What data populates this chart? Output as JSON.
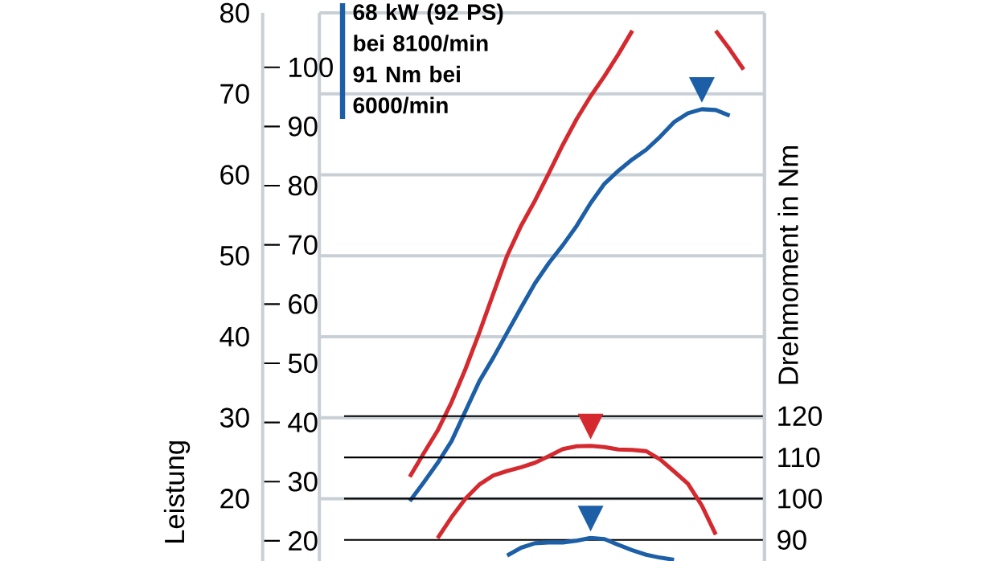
{
  "chart_data": {
    "type": "line",
    "ylabel": "Leistung",
    "y3label": "Drehmoment in Nm",
    "annotations": [
      "68 kW (92 PS) bei 8100/min 91 Nm bei 6000/min"
    ],
    "categories": [
      null,
      null,
      null,
      null,
      null,
      null,
      null,
      null,
      null,
      null,
      null,
      null,
      null,
      null,
      null,
      null,
      null,
      null,
      null,
      null,
      null,
      null,
      null,
      null,
      null
    ],
    "ylim": [
      12.3,
      80
    ],
    "yticks": [
      20,
      30,
      40,
      50,
      60,
      70,
      80
    ],
    "y2lim": [
      16.6,
      109.2
    ],
    "y2ticks": [
      20,
      30,
      40,
      50,
      60,
      70,
      80,
      90,
      100
    ],
    "y3lim": [
      84.9,
      217.7
    ],
    "y3ticks": [
      90,
      100,
      110,
      120
    ],
    "grid": true,
    "series": [
      {
        "color": "#d42a2f",
        "values": [
          22.7,
          25.6,
          28.4,
          31.9,
          36.0,
          40.5,
          45.3,
          50.0,
          53.7,
          56.8,
          60.2,
          63.7,
          66.9,
          69.7,
          72.2,
          74.9,
          77.8,
          null,
          null,
          null,
          null,
          null,
          null,
          null,
          null
        ]
      },
      {
        "color": "#d42a2f",
        "values": [
          null,
          null,
          null,
          null,
          null,
          null,
          null,
          null,
          null,
          null,
          null,
          null,
          null,
          null,
          null,
          null,
          null,
          null,
          null,
          null,
          null,
          null,
          77.8,
          75.5,
          73.0
        ]
      },
      {
        "color": "#1d5fa6",
        "values": [
          19.7,
          22.0,
          24.4,
          27.1,
          30.8,
          34.5,
          37.4,
          40.5,
          43.6,
          46.6,
          49.1,
          51.3,
          53.7,
          56.5,
          58.9,
          60.5,
          61.9,
          63.1,
          64.7,
          66.5,
          67.6,
          68.1,
          68.0,
          67.3,
          null
        ]
      },
      {
        "axis": "y3",
        "color": "#d42a2f",
        "values": [
          null,
          null,
          90.4,
          95.5,
          100.0,
          103.4,
          105.6,
          106.7,
          107.6,
          108.7,
          110.3,
          112.0,
          112.7,
          112.8,
          112.5,
          111.9,
          111.8,
          111.5,
          109.5,
          106.6,
          103.6,
          98.3,
          91.3,
          null,
          null
        ]
      },
      {
        "axis": "y3",
        "color": "#1d5fa6",
        "values": [
          null,
          null,
          null,
          null,
          null,
          null,
          null,
          86.2,
          88.1,
          89.2,
          89.4,
          89.4,
          89.8,
          90.5,
          90.2,
          88.8,
          87.5,
          86.4,
          85.7,
          85.2,
          null,
          null,
          null,
          null,
          null
        ]
      }
    ]
  }
}
